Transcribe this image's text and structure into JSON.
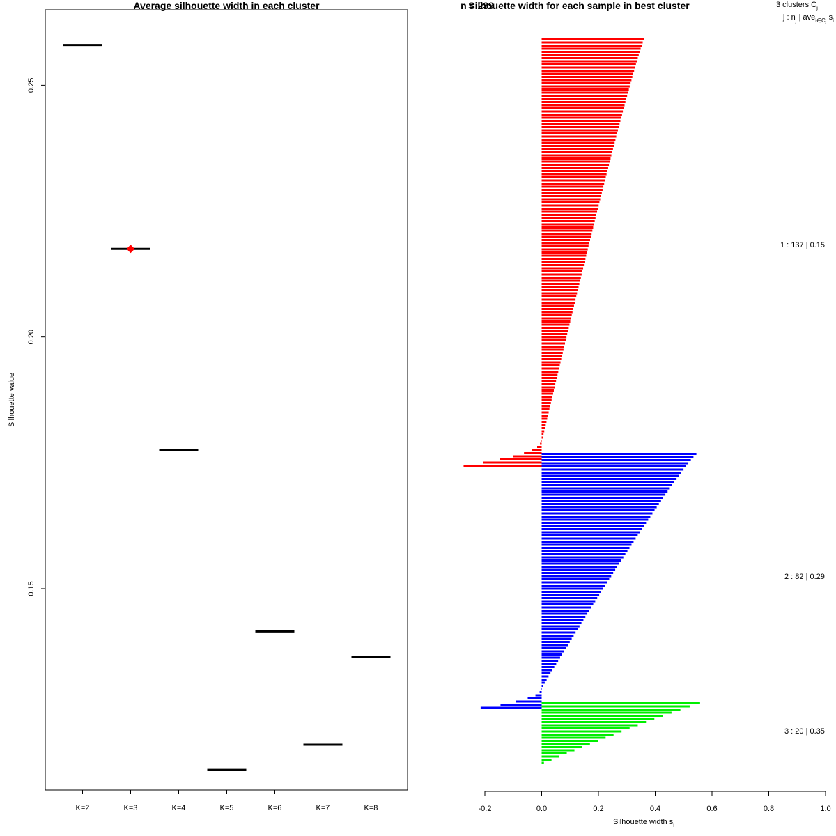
{
  "chart_data": [
    {
      "type": "scatter",
      "title": "Average silhouette width in each cluster",
      "ylabel": "Silhouette value",
      "ylim": [
        0.11,
        0.265
      ],
      "yticks": [
        "0.15",
        "0.20",
        "0.25"
      ],
      "ytick_values": [
        0.15,
        0.2,
        0.25
      ],
      "categories": [
        "K=2",
        "K=3",
        "K=4",
        "K=5",
        "K=6",
        "K=7",
        "K=8"
      ],
      "values": [
        0.258,
        0.2175,
        0.1775,
        0.114,
        0.1415,
        0.119,
        0.1365
      ],
      "best_k": "K=3",
      "best_color": "#ff0000",
      "line_color": "#000000"
    },
    {
      "type": "bar",
      "title": "Silhouette width for each sample in best cluster",
      "overlap_text": "n = 239",
      "xlabel": "Silhouette width s",
      "xlabel_sub": "i",
      "xlim": [
        -0.2,
        1.0
      ],
      "xticks": [
        "-0.2",
        "0.0",
        "0.2",
        "0.4",
        "0.6",
        "0.8",
        "1.0"
      ],
      "xtick_values": [
        -0.2,
        0.0,
        0.2,
        0.4,
        0.6,
        0.8,
        1.0
      ],
      "header_line1": "3  clusters  C",
      "header_line1_sub": "j",
      "header_line2": "j :  n",
      "header_line2_sub1": "j",
      "header_line2_mid": " | ave",
      "header_line2_sub2": "i∈Cj",
      "header_line2_end": "  s",
      "header_line2_end_sub": "i",
      "clusters": [
        {
          "id": 1,
          "n": 137,
          "label": "1 :  137  |  0.15",
          "color": "#ff0000",
          "max": 0.36,
          "min": -0.275,
          "neg_count": 9
        },
        {
          "id": 2,
          "n": 82,
          "label": "2 :  82  |  0.29",
          "color": "#0000ff",
          "max": 0.545,
          "min": -0.215,
          "neg_count": 7
        },
        {
          "id": 3,
          "n": 20,
          "label": "3 :  20  |  0.35",
          "color": "#00ee00",
          "max": 0.558,
          "min": 0.008,
          "neg_count": 0
        }
      ]
    }
  ]
}
